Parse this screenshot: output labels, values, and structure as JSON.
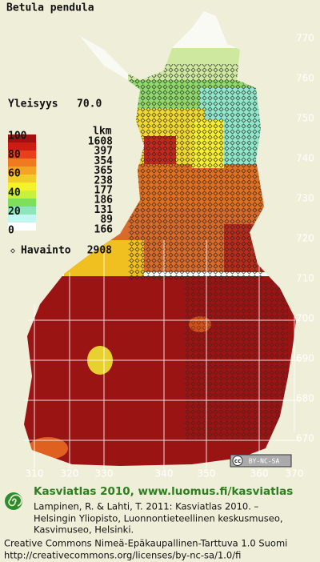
{
  "map": {
    "title": "Betula pendula",
    "frequency": {
      "label": "Yleisyys",
      "value": {
        "value": 70,
        "label": "70.0"
      }
    },
    "legend": {
      "scale": [
        100,
        80,
        60,
        40,
        20,
        0
      ],
      "count_header": "lkm",
      "counts": [
        1608,
        397,
        354,
        365,
        238,
        177,
        186,
        131,
        89,
        166
      ]
    },
    "observations": {
      "label": "Havainto",
      "count": 2908
    },
    "y_labels": [
      770,
      760,
      750,
      740,
      730,
      720,
      710,
      700,
      690,
      680,
      670
    ],
    "x_labels": [
      310,
      320,
      330,
      340,
      350,
      360,
      370
    ],
    "license_badge": {
      "cc": "cc",
      "text": "BY-NC-SA"
    }
  },
  "footer": {
    "heading": "Kasviatlas 2010, www.luomus.fi/kasviatlas",
    "citation": [
      "Lampinen, R. & Lahti, T. 2011: Kasviatlas 2010. –",
      "Helsingin Yliopisto, Luonnontieteellinen keskusmuseo,",
      "Kasvimuseo, Helsinki."
    ],
    "license": [
      "Creative Commons Nimeä-Epäkaupallinen-Tarttuva 1.0 Suomi",
      "http://creativecommons.org/licenses/by-nc-sa/1.0/fi"
    ]
  }
}
